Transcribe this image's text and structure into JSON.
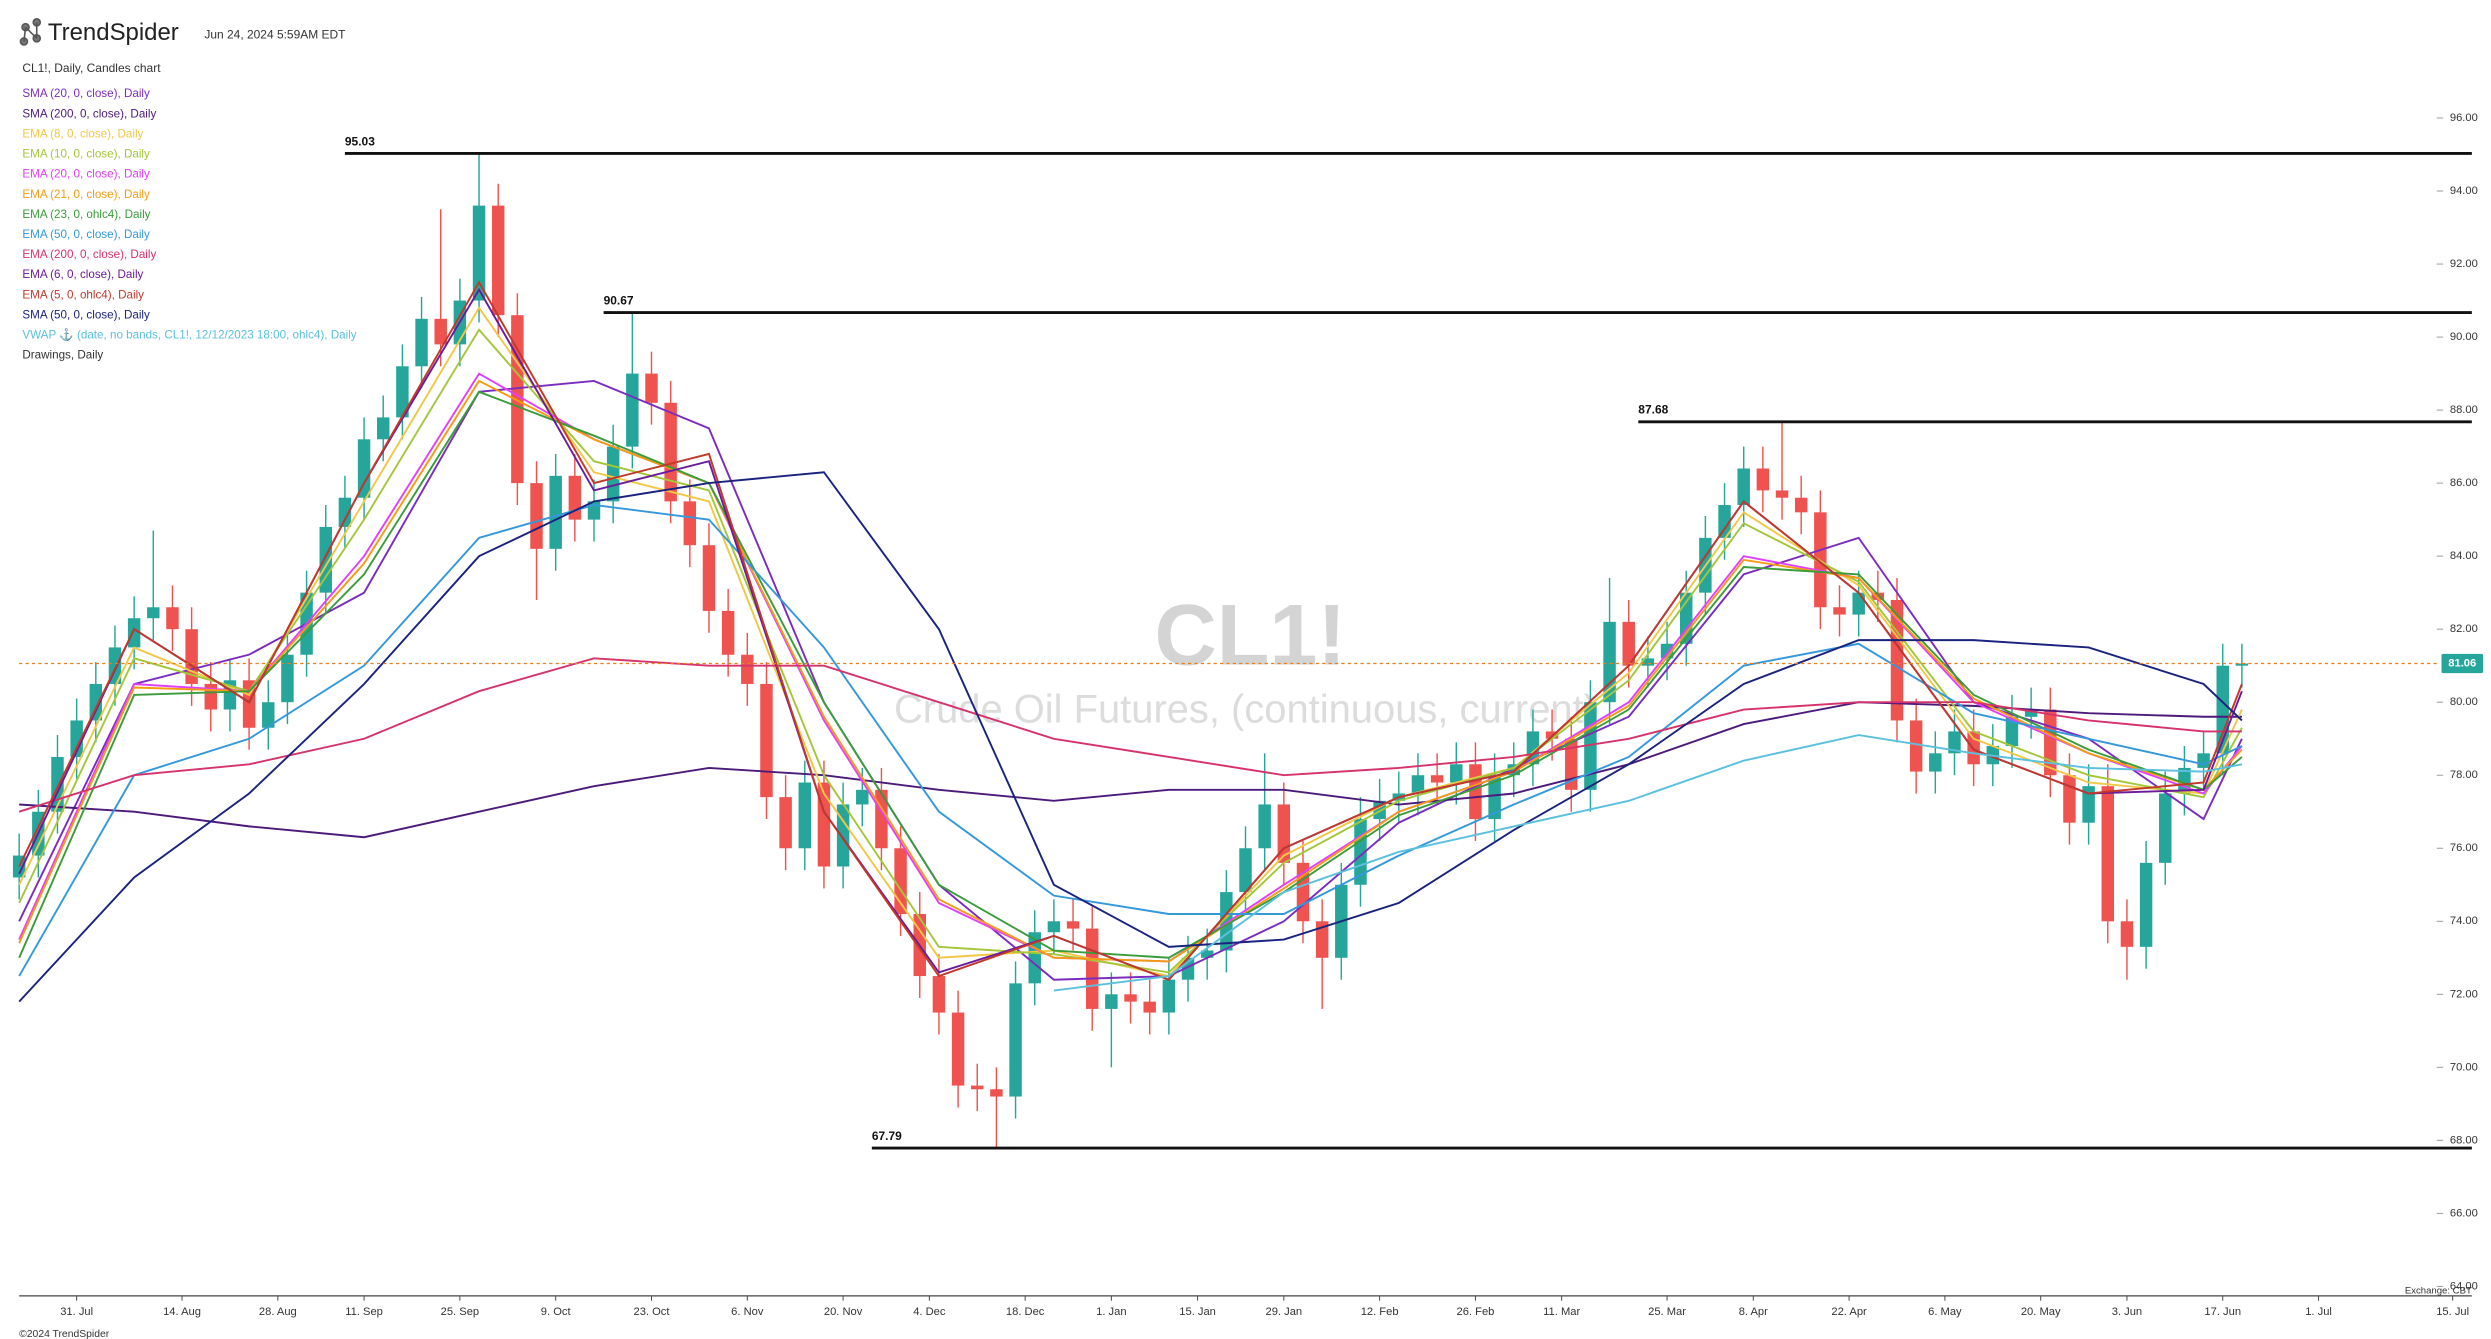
{
  "header": {
    "brand": "TrendSpider",
    "timestamp": "Jun 24, 2024 5:59AM EDT",
    "chart_label": "CL1!, Daily, Candles chart",
    "drawings_label": "Drawings, Daily"
  },
  "footer": {
    "copyright": "©2024 TrendSpider",
    "exchange": "Exchange: CBT"
  },
  "chart_data": {
    "type": "candlestick",
    "watermark": "CL1!",
    "watermark_subtitle": "Crude Oil Futures, (continuous, current)",
    "xlim": [
      0,
      256
    ],
    "xticks": [
      {
        "value": 6,
        "label": "31. Jul"
      },
      {
        "value": 17,
        "label": "14. Aug"
      },
      {
        "value": 27,
        "label": "28. Aug"
      },
      {
        "value": 36,
        "label": "11. Sep"
      },
      {
        "value": 46,
        "label": "25. Sep"
      },
      {
        "value": 56,
        "label": "9. Oct"
      },
      {
        "value": 66,
        "label": "23. Oct"
      },
      {
        "value": 76,
        "label": "6. Nov"
      },
      {
        "value": 86,
        "label": "20. Nov"
      },
      {
        "value": 95,
        "label": "4. Dec"
      },
      {
        "value": 105,
        "label": "18. Dec"
      },
      {
        "value": 114,
        "label": "1. Jan"
      },
      {
        "value": 123,
        "label": "15. Jan"
      },
      {
        "value": 132,
        "label": "29. Jan"
      },
      {
        "value": 142,
        "label": "12. Feb"
      },
      {
        "value": 152,
        "label": "26. Feb"
      },
      {
        "value": 161,
        "label": "11. Mar"
      },
      {
        "value": 172,
        "label": "25. Mar"
      },
      {
        "value": 181,
        "label": "8. Apr"
      },
      {
        "value": 191,
        "label": "22. Apr"
      },
      {
        "value": 201,
        "label": "6. May"
      },
      {
        "value": 211,
        "label": "20. May"
      },
      {
        "value": 220,
        "label": "3. Jun"
      },
      {
        "value": 230,
        "label": "17. Jun"
      },
      {
        "value": 240,
        "label": "1. Jul"
      },
      {
        "value": 254,
        "label": "15. Jul"
      }
    ],
    "ylim": [
      63.74,
      97.92
    ],
    "yticks": [
      {
        "value": 64,
        "label": "64.00"
      },
      {
        "value": 66,
        "label": "66.00"
      },
      {
        "value": 68,
        "label": "68.00"
      },
      {
        "value": 70,
        "label": "70.00"
      },
      {
        "value": 72,
        "label": "72.00"
      },
      {
        "value": 74,
        "label": "74.00"
      },
      {
        "value": 76,
        "label": "76.00"
      },
      {
        "value": 78,
        "label": "78.00"
      },
      {
        "value": 80,
        "label": "80.00"
      },
      {
        "value": 82,
        "label": "82.00"
      },
      {
        "value": 84,
        "label": "84.00"
      },
      {
        "value": 86,
        "label": "86.00"
      },
      {
        "value": 88,
        "label": "88.00"
      },
      {
        "value": 90,
        "label": "90.00"
      },
      {
        "value": 92,
        "label": "92.00"
      },
      {
        "value": 94,
        "label": "94.00"
      },
      {
        "value": 96,
        "label": "96.00"
      }
    ],
    "up_color": "#26a69a",
    "down_color": "#ef5350",
    "x": [
      0,
      2,
      4,
      6,
      8,
      10,
      12,
      14,
      16,
      18,
      20,
      22,
      24,
      26,
      28,
      30,
      32,
      34,
      36,
      38,
      40,
      42,
      44,
      46,
      48,
      50,
      52,
      54,
      56,
      58,
      60,
      62,
      64,
      66,
      68,
      70,
      72,
      74,
      76,
      78,
      80,
      82,
      84,
      86,
      88,
      90,
      92,
      94,
      96,
      98,
      100,
      102,
      104,
      106,
      108,
      110,
      112,
      114,
      116,
      118,
      120,
      122,
      124,
      126,
      128,
      130,
      132,
      134,
      136,
      138,
      140,
      142,
      144,
      146,
      148,
      150,
      152,
      154,
      156,
      158,
      160,
      162,
      164,
      166,
      168,
      170,
      172,
      174,
      176,
      178,
      180,
      182,
      184,
      186,
      188,
      190,
      192,
      194,
      196,
      198,
      200,
      202,
      204,
      206,
      208,
      210,
      212,
      214,
      216,
      218,
      220,
      222,
      224,
      226,
      228,
      230,
      232
    ],
    "open": [
      75.2,
      75.8,
      77.0,
      78.5,
      79.5,
      80.5,
      81.5,
      82.3,
      82.6,
      82.0,
      80.5,
      79.8,
      80.6,
      79.3,
      80.0,
      81.3,
      83.0,
      84.8,
      85.6,
      87.2,
      87.8,
      89.2,
      90.5,
      89.8,
      91.0,
      93.6,
      90.6,
      86.0,
      84.2,
      86.2,
      85.0,
      85.5,
      87.0,
      89.0,
      88.2,
      85.5,
      84.3,
      82.5,
      81.3,
      80.5,
      77.4,
      76.0,
      77.8,
      75.5,
      77.2,
      77.6,
      76.0,
      74.2,
      72.5,
      71.5,
      69.5,
      69.4,
      69.2,
      72.3,
      73.7,
      74.0,
      73.8,
      71.6,
      72.0,
      71.8,
      71.5,
      72.4,
      73.0,
      73.2,
      74.8,
      76.0,
      77.2,
      75.6,
      74.0,
      73.0,
      75.0,
      76.8,
      77.3,
      77.5,
      78.0,
      77.8,
      78.3,
      76.8,
      78.0,
      78.3,
      79.2,
      79.0,
      77.6,
      80.0,
      82.2,
      81.0,
      81.2,
      81.6,
      83.0,
      84.5,
      85.4,
      86.4,
      85.8,
      85.6,
      85.2,
      82.6,
      82.4,
      83.0,
      82.8,
      79.5,
      78.1,
      78.6,
      79.2,
      78.3,
      78.8,
      79.6,
      79.8,
      78.0,
      76.7,
      77.7,
      74.0,
      73.3,
      75.6,
      77.5,
      78.2,
      78.6,
      81.0
    ],
    "high": [
      76.4,
      77.6,
      79.1,
      80.1,
      81.1,
      82.1,
      82.9,
      84.7,
      83.2,
      82.6,
      81.1,
      81.2,
      81.2,
      80.6,
      81.9,
      83.6,
      85.4,
      86.2,
      87.8,
      88.4,
      89.8,
      91.1,
      93.5,
      91.6,
      95.03,
      94.2,
      91.2,
      86.6,
      86.8,
      86.8,
      86.1,
      87.6,
      90.67,
      89.6,
      88.8,
      86.1,
      84.9,
      83.1,
      81.9,
      81.1,
      78.0,
      78.4,
      78.4,
      77.8,
      78.2,
      78.2,
      76.6,
      74.8,
      73.1,
      72.1,
      70.1,
      70.0,
      72.9,
      74.3,
      74.6,
      74.6,
      74.4,
      72.6,
      72.6,
      72.4,
      73.0,
      73.6,
      73.8,
      75.4,
      76.6,
      78.6,
      77.8,
      76.2,
      74.6,
      75.6,
      77.4,
      77.9,
      78.1,
      78.6,
      78.6,
      78.9,
      78.9,
      78.6,
      78.9,
      79.8,
      79.8,
      79.6,
      80.6,
      83.4,
      82.8,
      81.8,
      82.2,
      83.6,
      85.1,
      86.0,
      87.0,
      87.0,
      87.68,
      86.2,
      85.8,
      83.2,
      83.6,
      83.6,
      83.4,
      80.1,
      79.2,
      79.8,
      79.8,
      79.4,
      80.2,
      80.4,
      80.4,
      78.6,
      78.3,
      78.3,
      74.6,
      76.2,
      78.1,
      78.8,
      79.2,
      81.6,
      81.6
    ],
    "low": [
      74.6,
      75.2,
      76.4,
      77.9,
      78.9,
      79.9,
      80.9,
      81.7,
      81.4,
      79.9,
      79.2,
      79.2,
      78.7,
      78.7,
      79.4,
      80.7,
      82.4,
      84.2,
      85.0,
      86.6,
      87.2,
      88.6,
      89.2,
      89.2,
      90.4,
      90.0,
      85.4,
      82.8,
      83.6,
      84.4,
      84.4,
      84.9,
      86.4,
      87.6,
      84.9,
      83.7,
      81.9,
      80.7,
      79.9,
      76.8,
      75.4,
      75.4,
      74.9,
      74.9,
      76.6,
      75.4,
      73.6,
      71.9,
      70.9,
      68.9,
      68.8,
      67.79,
      68.6,
      71.7,
      73.1,
      73.2,
      71.0,
      70.0,
      71.2,
      70.9,
      70.9,
      71.8,
      72.4,
      72.6,
      74.2,
      75.4,
      75.0,
      73.4,
      71.6,
      72.4,
      74.4,
      76.2,
      76.7,
      76.9,
      77.2,
      77.2,
      76.2,
      76.2,
      77.4,
      77.7,
      78.4,
      77.0,
      77.0,
      79.4,
      80.4,
      80.4,
      80.6,
      81.0,
      82.4,
      83.9,
      84.8,
      85.2,
      85.0,
      84.6,
      82.0,
      81.8,
      81.8,
      82.2,
      78.9,
      77.5,
      77.5,
      78.0,
      77.7,
      77.7,
      78.2,
      79.0,
      77.4,
      76.1,
      76.1,
      73.4,
      72.4,
      72.7,
      75.0,
      76.9,
      77.6,
      78.0,
      80.4
    ],
    "close": [
      75.8,
      77.0,
      78.5,
      79.5,
      80.5,
      81.5,
      82.3,
      82.6,
      82.0,
      80.5,
      79.8,
      80.6,
      79.3,
      80.0,
      81.3,
      83.0,
      84.8,
      85.6,
      87.2,
      87.8,
      89.2,
      90.5,
      89.8,
      91.0,
      93.6,
      90.6,
      86.0,
      84.2,
      86.2,
      85.0,
      85.5,
      87.0,
      89.0,
      88.2,
      85.5,
      84.3,
      82.5,
      81.3,
      80.5,
      77.4,
      76.0,
      77.8,
      75.5,
      77.2,
      77.6,
      76.0,
      74.2,
      72.5,
      71.5,
      69.5,
      69.4,
      69.2,
      72.3,
      73.7,
      74.0,
      73.8,
      71.6,
      72.0,
      71.8,
      71.5,
      72.4,
      73.0,
      73.2,
      74.8,
      76.0,
      77.2,
      75.6,
      74.0,
      73.0,
      75.0,
      76.8,
      77.3,
      77.5,
      78.0,
      77.8,
      78.3,
      76.8,
      78.0,
      78.3,
      79.2,
      79.0,
      77.6,
      80.0,
      82.2,
      81.0,
      81.2,
      81.6,
      83.0,
      84.5,
      85.4,
      86.4,
      85.8,
      85.6,
      85.2,
      82.6,
      82.4,
      83.0,
      82.8,
      79.5,
      78.1,
      78.6,
      79.2,
      78.3,
      78.8,
      79.6,
      79.8,
      78.0,
      76.7,
      77.7,
      74.0,
      73.3,
      75.6,
      77.5,
      78.2,
      78.6,
      81.0,
      81.06
    ],
    "last_price": 81.06,
    "last_price_color": "#e67e22",
    "levels": [
      {
        "value": 95.03,
        "start": 34
      },
      {
        "value": 90.67,
        "start": 61
      },
      {
        "value": 87.68,
        "start": 169
      },
      {
        "value": 67.79,
        "start": 89
      }
    ],
    "overlays": {
      "x": [
        0,
        12,
        24,
        36,
        48,
        60,
        72,
        84,
        96,
        108,
        120,
        132,
        144,
        156,
        168,
        180,
        192,
        204,
        216,
        228,
        232
      ],
      "series": [
        {
          "name": "SMA (20, 0, close), Daily",
          "color": "#7b2cbf",
          "values": [
            74,
            80.5,
            81.3,
            83,
            88.5,
            88.8,
            87.5,
            80,
            75,
            72.4,
            72.5,
            74,
            76.7,
            78.2,
            79.6,
            83.5,
            84.5,
            80,
            79,
            76.8,
            79
          ]
        },
        {
          "name": "SMA (200, 0, close), Daily",
          "color": "#4b1a7a",
          "values": [
            77.2,
            77,
            76.6,
            76.3,
            77,
            77.7,
            78.2,
            78,
            77.6,
            77.3,
            77.6,
            77.6,
            77.2,
            77.5,
            78.3,
            79.4,
            80,
            79.9,
            79.7,
            79.6,
            79.6
          ]
        },
        {
          "name": "EMA (8, 0, close), Daily",
          "color": "#f2c744",
          "values": [
            75,
            81.5,
            80.2,
            85.5,
            90.8,
            86.3,
            85.5,
            77.5,
            73,
            73.2,
            72.5,
            75.8,
            77.4,
            78.2,
            80.8,
            85.2,
            83.2,
            79,
            77.8,
            77.5,
            79.8
          ]
        },
        {
          "name": "EMA (10, 0, close), Daily",
          "color": "#a4c639",
          "values": [
            74.5,
            81.2,
            80.3,
            85,
            90.2,
            86.6,
            85.8,
            78,
            73.3,
            73.1,
            72.6,
            75.6,
            77.3,
            78.2,
            80.6,
            84.9,
            83.3,
            79.2,
            78,
            77.4,
            79.3
          ]
        },
        {
          "name": "EMA (20, 0, close), Daily",
          "color": "#e040fb",
          "values": [
            73.5,
            80.5,
            80.3,
            84,
            89,
            87.2,
            86,
            79.5,
            74.5,
            73,
            72.9,
            75,
            77,
            78.1,
            80,
            84,
            83.4,
            80,
            78.6,
            77.5,
            78.8
          ]
        },
        {
          "name": "EMA (21, 0, close), Daily",
          "color": "#f39c12",
          "values": [
            73.4,
            80.4,
            80.3,
            83.8,
            88.8,
            87.2,
            86,
            79.6,
            74.6,
            73,
            72.9,
            74.9,
            77,
            78.1,
            79.9,
            83.9,
            83.4,
            80.1,
            78.6,
            77.6,
            78.7
          ]
        },
        {
          "name": "EMA (23, 0, ohlc4), Daily",
          "color": "#3a9c3a",
          "values": [
            73,
            80.2,
            80.3,
            83.5,
            88.5,
            87.3,
            86,
            80,
            75,
            73.2,
            73,
            74.8,
            76.9,
            78,
            79.8,
            83.7,
            83.5,
            80.2,
            78.7,
            77.6,
            78.5
          ]
        },
        {
          "name": "EMA (50, 0, close), Daily",
          "color": "#3498db",
          "values": [
            72.5,
            78,
            79,
            81,
            84.5,
            85.4,
            85,
            81.5,
            77,
            74.7,
            74.2,
            74.2,
            75.8,
            77.2,
            78.5,
            81,
            81.6,
            79.7,
            79,
            78.3,
            78.8
          ]
        },
        {
          "name": "EMA (200, 0, close), Daily",
          "color": "#d6336c",
          "values": [
            77,
            78,
            78.3,
            79,
            80.3,
            81.2,
            81,
            81,
            80,
            79,
            78.5,
            78,
            78.2,
            78.5,
            79,
            79.8,
            80,
            80,
            79.5,
            79.2,
            79.2
          ]
        },
        {
          "name": "EMA (6, 0, close), Daily",
          "color": "#6a1b9a",
          "values": [
            75.3,
            82,
            80,
            86,
            91.3,
            85.8,
            86.6,
            77,
            72.6,
            73.6,
            72.4,
            76,
            77.4,
            78.1,
            81,
            85.5,
            83,
            78.7,
            77.5,
            77.6,
            80.3
          ]
        },
        {
          "name": "EMA (5, 0, ohlc4), Daily",
          "color": "#c0392b",
          "values": [
            75.5,
            82,
            80,
            86,
            91.5,
            86,
            86.8,
            77,
            72.5,
            73.6,
            72.4,
            76,
            77.4,
            78.1,
            81,
            85.5,
            83,
            78.7,
            77.5,
            77.8,
            80.5
          ]
        },
        {
          "name": "SMA (50, 0, close), Daily",
          "color": "#1a237e",
          "values": [
            71.8,
            75.2,
            77.5,
            80.5,
            84,
            85.5,
            86,
            86.3,
            82,
            75,
            73.3,
            73.5,
            74.5,
            76.5,
            78.3,
            80.5,
            81.7,
            81.7,
            81.5,
            80.5,
            79.5
          ]
        },
        {
          "name": "VWAP ⚓ (date, no bands, CL1!, 12/12/2023 18:00, ohlc4), Daily",
          "color": "#5bc0de",
          "values": [
            null,
            null,
            null,
            null,
            null,
            null,
            null,
            null,
            null,
            72.1,
            72.5,
            74.8,
            75.9,
            76.6,
            77.3,
            78.4,
            79.1,
            78.6,
            78.2,
            78.1,
            78.3
          ]
        }
      ]
    }
  }
}
